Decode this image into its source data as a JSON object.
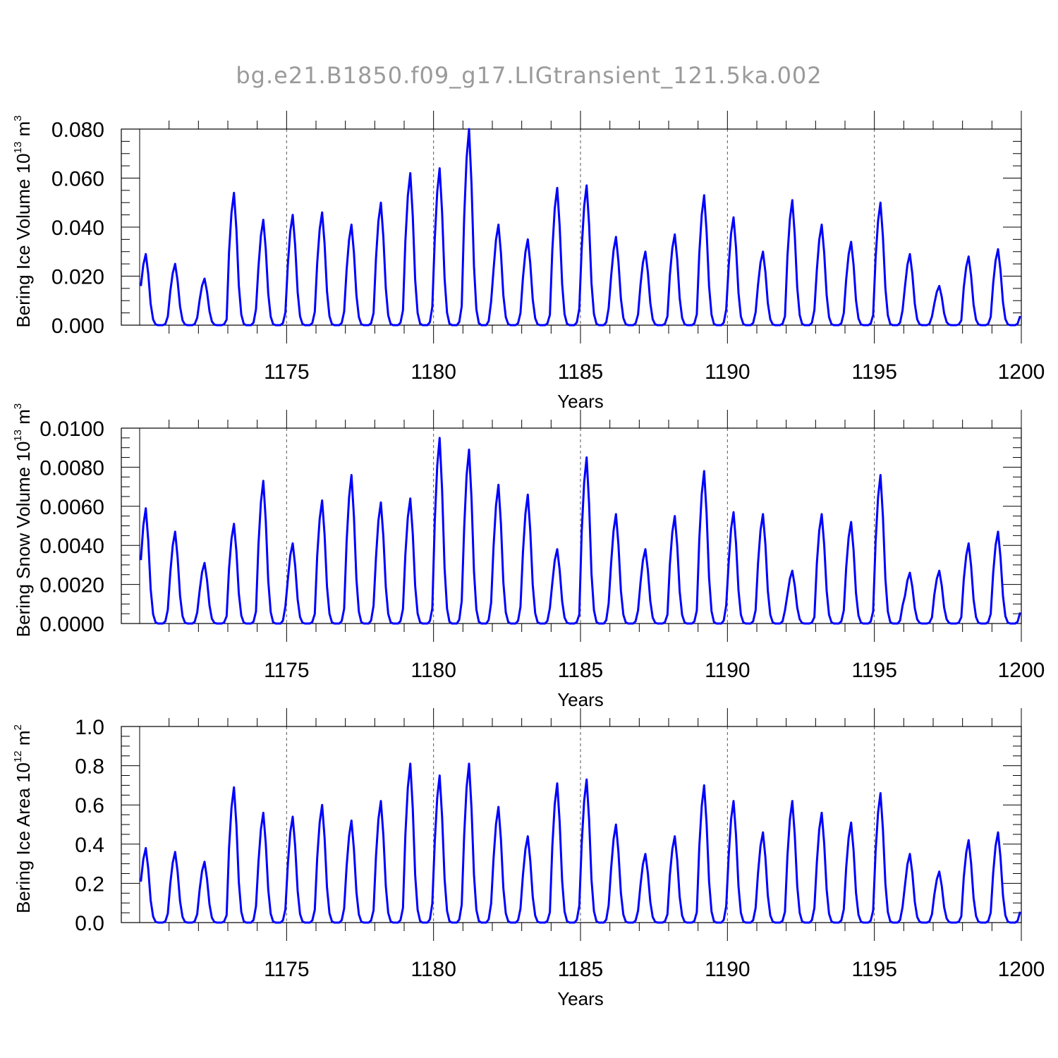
{
  "figure": {
    "title": "bg.e21.B1850.f09_g17.LIGtransient_121.5ka.002"
  },
  "chart_data": [
    {
      "type": "line",
      "id": "ice_volume",
      "ylabel": "Bering Ice Volume 10",
      "ylabel_exp": "13",
      "ylabel_unit": " m",
      "ylabel_unit_exp": "3",
      "xlabel": "Years",
      "xlim": [
        1170,
        1200
      ],
      "ylim": [
        0,
        0.08
      ],
      "xticks": [
        1175,
        1180,
        1185,
        1190,
        1195,
        1200
      ],
      "xtick_labels": [
        "1175",
        "1180",
        "1185",
        "1190",
        "1195",
        "1200"
      ],
      "yticks": [
        0,
        0.02,
        0.04,
        0.06,
        0.08
      ],
      "ytick_labels": [
        "0.000",
        "0.020",
        "0.040",
        "0.060",
        "0.080"
      ],
      "color": "#0000ff",
      "peaks": [
        0.029,
        0.025,
        0.019,
        0.054,
        0.043,
        0.045,
        0.046,
        0.041,
        0.05,
        0.062,
        0.064,
        0.08,
        0.041,
        0.035,
        0.056,
        0.057,
        0.036,
        0.03,
        0.037,
        0.053,
        0.044,
        0.03,
        0.051,
        0.041,
        0.034,
        0.05,
        0.029,
        0.016,
        0.028,
        0.031
      ]
    },
    {
      "type": "line",
      "id": "snow_volume",
      "ylabel": "Bering Snow Volume 10",
      "ylabel_exp": "13",
      "ylabel_unit": " m",
      "ylabel_unit_exp": "3",
      "xlabel": "Years",
      "xlim": [
        1170,
        1200
      ],
      "ylim": [
        0,
        0.01
      ],
      "xticks": [
        1175,
        1180,
        1185,
        1190,
        1195,
        1200
      ],
      "xtick_labels": [
        "1175",
        "1180",
        "1185",
        "1190",
        "1195",
        "1200"
      ],
      "yticks": [
        0,
        0.002,
        0.004,
        0.006,
        0.008,
        0.01
      ],
      "ytick_labels": [
        "0.0000",
        "0.0020",
        "0.0040",
        "0.0060",
        "0.0080",
        "0.0100"
      ],
      "color": "#0000ff",
      "peaks": [
        0.0059,
        0.0047,
        0.0031,
        0.0051,
        0.0073,
        0.0041,
        0.0063,
        0.0076,
        0.0062,
        0.0064,
        0.0095,
        0.0089,
        0.0071,
        0.0066,
        0.0038,
        0.0085,
        0.0056,
        0.0038,
        0.0055,
        0.0078,
        0.0057,
        0.0056,
        0.0027,
        0.0056,
        0.0052,
        0.0076,
        0.0026,
        0.0027,
        0.0041,
        0.0047
      ]
    },
    {
      "type": "line",
      "id": "ice_area",
      "ylabel": "Bering Ice Area 10",
      "ylabel_exp": "12",
      "ylabel_unit": " m",
      "ylabel_unit_exp": "2",
      "xlabel": "Years",
      "xlim": [
        1170,
        1200
      ],
      "ylim": [
        0,
        1.0
      ],
      "xticks": [
        1175,
        1180,
        1185,
        1190,
        1195,
        1200
      ],
      "xtick_labels": [
        "1175",
        "1180",
        "1185",
        "1190",
        "1195",
        "1200"
      ],
      "yticks": [
        0,
        0.2,
        0.4,
        0.6,
        0.8,
        1.0
      ],
      "ytick_labels": [
        "0.0",
        "0.2",
        "0.4",
        "0.6",
        "0.8",
        "1.0"
      ],
      "color": "#0000ff",
      "peaks": [
        0.38,
        0.36,
        0.31,
        0.69,
        0.56,
        0.54,
        0.6,
        0.52,
        0.62,
        0.81,
        0.75,
        0.81,
        0.59,
        0.44,
        0.71,
        0.73,
        0.5,
        0.35,
        0.44,
        0.7,
        0.62,
        0.46,
        0.62,
        0.56,
        0.51,
        0.66,
        0.35,
        0.26,
        0.42,
        0.46
      ]
    }
  ]
}
